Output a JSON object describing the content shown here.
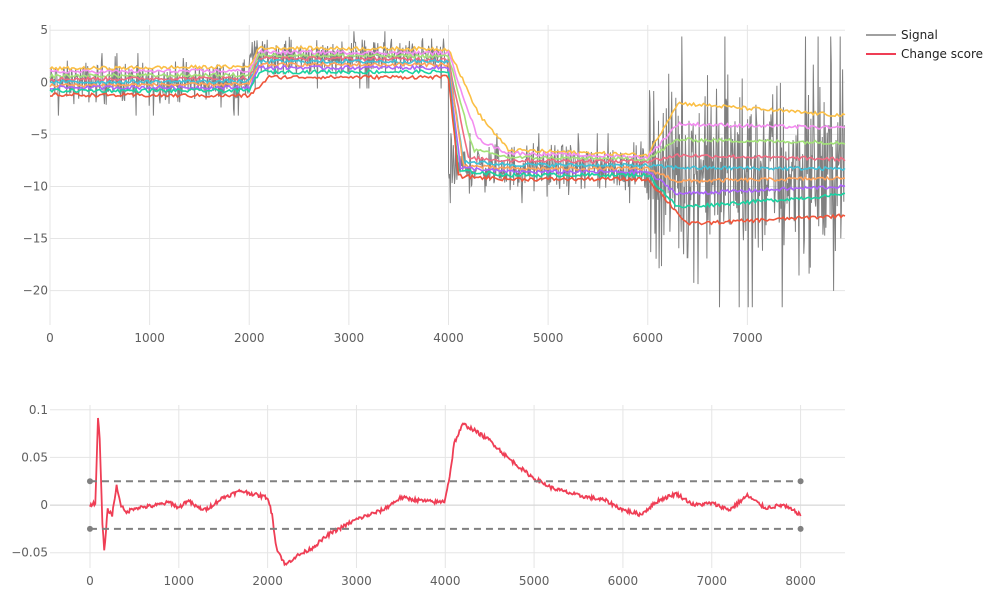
{
  "chart_data": [
    {
      "type": "line",
      "title": "",
      "xlabel": "",
      "ylabel": "",
      "xlim": [
        0,
        7980
      ],
      "ylim": [
        -23.3,
        5.5
      ],
      "x_ticks": [
        0,
        1000,
        2000,
        3000,
        4000,
        5000,
        6000,
        7000
      ],
      "y_ticks": [
        5,
        0,
        -5,
        -10,
        -15,
        -20
      ],
      "x_tick_labels": [
        "0",
        "1000",
        "2000",
        "3000",
        "4000",
        "5000",
        "6000",
        "7000"
      ],
      "y_tick_labels": [
        "5",
        "0",
        "−5",
        "−10",
        "−15",
        "−20"
      ],
      "grid": true,
      "signal": {
        "name": "Signal",
        "color": "#808080",
        "segments": [
          {
            "x_start": 0,
            "x_end": 2000,
            "mean": 0,
            "noise_range": [
              -3.2,
              2.8
            ]
          },
          {
            "x_start": 2000,
            "x_end": 4000,
            "mean": 2.5,
            "noise_range": [
              -0.6,
              4.9
            ]
          },
          {
            "x_start": 4000,
            "x_end": 6000,
            "mean": -8.2,
            "noise_range": [
              -11.6,
              -4.9
            ]
          },
          {
            "x_start": 6000,
            "x_end": 7980,
            "mean": -8.5,
            "noise_range": [
              -21.6,
              4.4
            ]
          }
        ]
      },
      "series": [
        {
          "color": "#fbbf45",
          "x": [
            0,
            2000,
            2100,
            4000,
            4300,
            4600,
            6000,
            6300,
            7980
          ],
          "y": [
            1.3,
            1.5,
            3.3,
            3.2,
            -3.0,
            -6.5,
            -7.0,
            -2.0,
            -3.2
          ]
        },
        {
          "color": "#f38df0",
          "x": [
            0,
            2000,
            2100,
            4000,
            4300,
            4600,
            6000,
            6300,
            7980
          ],
          "y": [
            1.0,
            1.1,
            2.9,
            2.8,
            -5.5,
            -6.8,
            -7.2,
            -4.0,
            -4.4
          ]
        },
        {
          "color": "#a3e279",
          "x": [
            0,
            2000,
            2100,
            4000,
            4250,
            4600,
            6000,
            6300,
            7980
          ],
          "y": [
            0.6,
            0.7,
            2.6,
            2.5,
            -6.5,
            -7.2,
            -7.4,
            -5.5,
            -5.8
          ]
        },
        {
          "color": "#ef6b82",
          "x": [
            0,
            2000,
            2100,
            4000,
            4200,
            4600,
            6000,
            6300,
            7980
          ],
          "y": [
            0.3,
            0.4,
            2.3,
            2.2,
            -7.3,
            -7.5,
            -7.6,
            -7.0,
            -7.4
          ]
        },
        {
          "color": "#3ec1d7",
          "x": [
            0,
            2000,
            2100,
            4000,
            4150,
            4600,
            6000,
            6300,
            7980
          ],
          "y": [
            0.0,
            0.1,
            2.0,
            2.0,
            -7.6,
            -7.9,
            -8.0,
            -8.2,
            -8.3
          ]
        },
        {
          "color": "#ffa15a",
          "x": [
            0,
            2000,
            2100,
            4000,
            4150,
            4600,
            6000,
            6300,
            7980
          ],
          "y": [
            -0.3,
            -0.2,
            1.7,
            1.7,
            -8.0,
            -8.3,
            -8.3,
            -9.5,
            -9.2
          ]
        },
        {
          "color": "#ab63fa",
          "x": [
            0,
            2000,
            2100,
            4000,
            4120,
            4600,
            6000,
            6300,
            7980
          ],
          "y": [
            -0.5,
            -0.5,
            1.4,
            1.4,
            -8.2,
            -8.6,
            -8.6,
            -10.7,
            -10.0
          ]
        },
        {
          "color": "#19d3a2",
          "x": [
            0,
            2000,
            2100,
            4000,
            4100,
            4600,
            6000,
            6300,
            7980
          ],
          "y": [
            -0.8,
            -0.8,
            1.0,
            1.0,
            -8.5,
            -8.9,
            -8.9,
            -12.0,
            -10.8
          ]
        },
        {
          "color": "#ef553b",
          "x": [
            0,
            2000,
            2200,
            4000,
            4100,
            4600,
            6000,
            6400,
            7980
          ],
          "y": [
            -1.2,
            -1.3,
            0.5,
            0.5,
            -9.0,
            -9.3,
            -9.3,
            -13.6,
            -12.8
          ]
        }
      ]
    },
    {
      "type": "line",
      "title": "",
      "xlabel": "",
      "ylabel": "",
      "xlim": [
        -450,
        8500
      ],
      "ylim": [
        -0.066,
        0.105
      ],
      "x_ticks": [
        0,
        1000,
        2000,
        3000,
        4000,
        5000,
        6000,
        7000,
        8000
      ],
      "y_ticks": [
        0.1,
        0.05,
        0,
        -0.05
      ],
      "x_tick_labels": [
        "0",
        "1000",
        "2000",
        "3000",
        "4000",
        "5000",
        "6000",
        "7000",
        "8000"
      ],
      "y_tick_labels": [
        "0.1",
        "0.05",
        "0",
        "−0.05"
      ],
      "grid": true,
      "series": [
        {
          "name": "Change score",
          "color": "#ef3e55",
          "x": [
            0,
            60,
            90,
            110,
            140,
            160,
            200,
            250,
            300,
            350,
            400,
            500,
            700,
            900,
            1000,
            1100,
            1200,
            1300,
            1500,
            1700,
            1900,
            2000,
            2050,
            2100,
            2200,
            2300,
            2500,
            2700,
            3000,
            3300,
            3500,
            3700,
            3900,
            3990,
            4050,
            4100,
            4200,
            4300,
            4500,
            4700,
            4900,
            5000,
            5200,
            5500,
            5800,
            6000,
            6200,
            6400,
            6600,
            6800,
            7000,
            7200,
            7400,
            7600,
            7800,
            8000
          ],
          "y": [
            0,
            0.002,
            0.09,
            0.07,
            -0.02,
            -0.048,
            -0.005,
            -0.01,
            0.02,
            0.0,
            -0.008,
            -0.003,
            -0.001,
            0.003,
            -0.003,
            0.005,
            -0.002,
            -0.005,
            0.008,
            0.015,
            0.01,
            0.008,
            -0.01,
            -0.045,
            -0.063,
            -0.055,
            -0.045,
            -0.03,
            -0.015,
            -0.005,
            0.008,
            0.005,
            0.003,
            0.004,
            0.03,
            0.065,
            0.085,
            0.08,
            0.068,
            0.05,
            0.035,
            0.028,
            0.018,
            0.01,
            0.005,
            -0.005,
            -0.01,
            0.005,
            0.012,
            0.0,
            0.002,
            -0.005,
            0.01,
            -0.003,
            0.0,
            -0.01
          ]
        }
      ],
      "threshold_lines": [
        {
          "color": "#808080",
          "x": [
            0,
            8000
          ],
          "y": [
            0.025,
            0.025
          ]
        },
        {
          "color": "#808080",
          "x": [
            0,
            8000
          ],
          "y": [
            -0.025,
            -0.025
          ]
        }
      ]
    }
  ],
  "legend": {
    "placement": "top-right",
    "items": [
      {
        "label": "Signal",
        "color": "#808080"
      },
      {
        "label": "Change score",
        "color": "#ef3e55"
      }
    ]
  }
}
